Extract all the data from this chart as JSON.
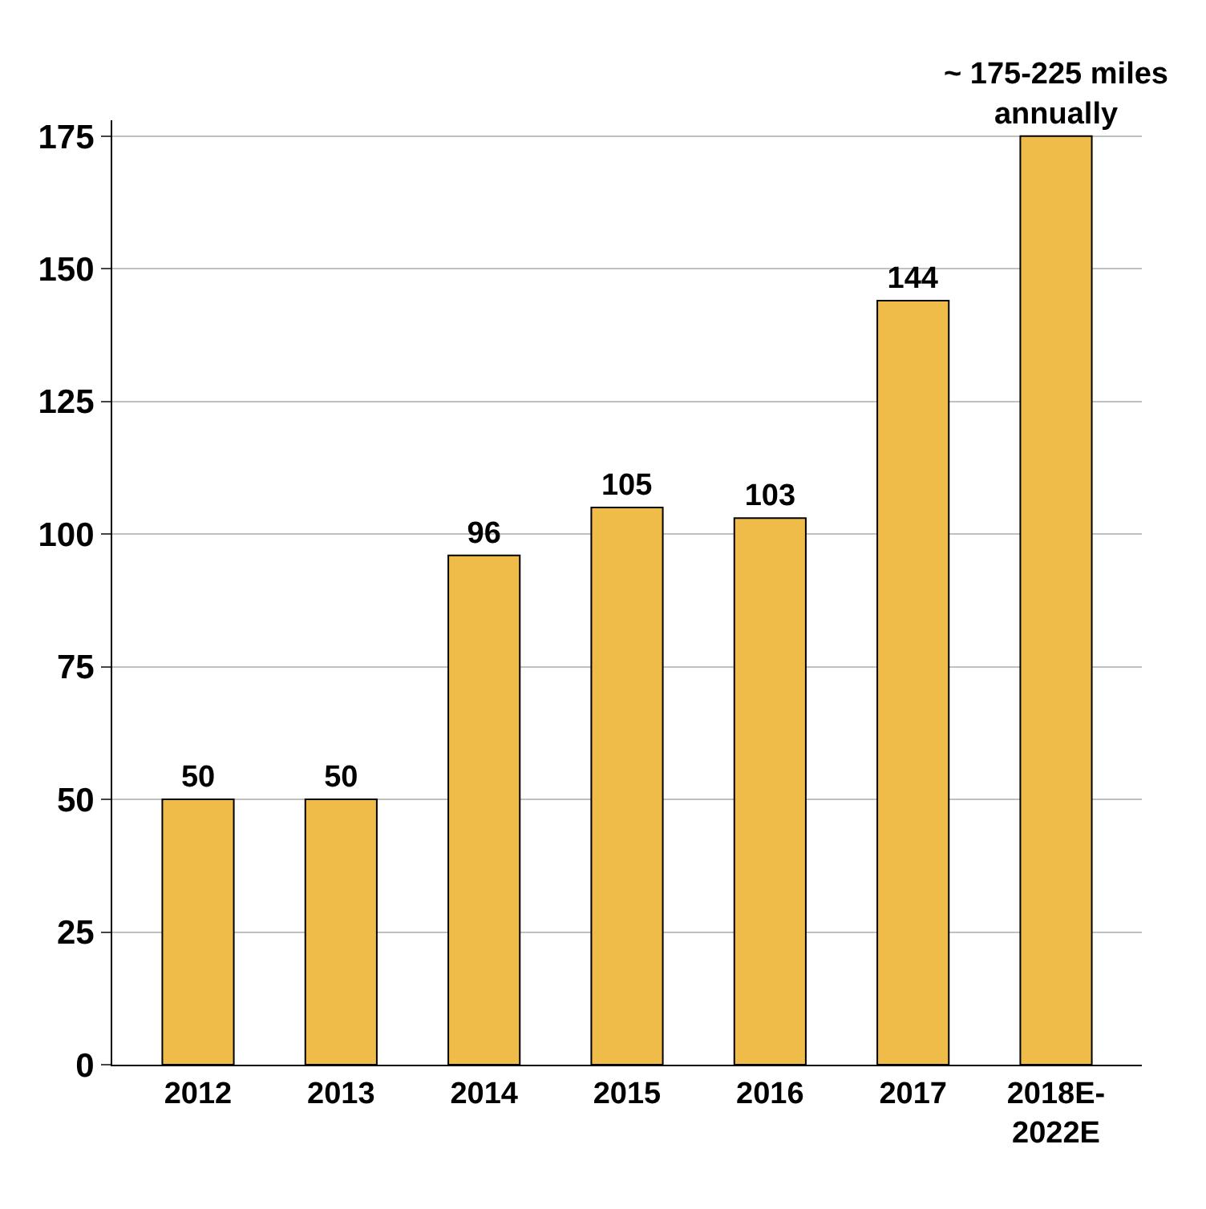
{
  "chart_data": {
    "type": "bar",
    "categories": [
      "2012",
      "2013",
      "2014",
      "2015",
      "2016",
      "2017",
      "2018E-2022E"
    ],
    "values": [
      50,
      50,
      96,
      105,
      103,
      144,
      175
    ],
    "value_labels": [
      "50",
      "50",
      "96",
      "105",
      "103",
      "144",
      "~ 175-225 miles annually"
    ],
    "color": "#efbc4a",
    "ylim": [
      0,
      178
    ],
    "yticks": [
      0,
      25,
      50,
      75,
      100,
      125,
      150,
      175
    ],
    "grid": "y"
  }
}
